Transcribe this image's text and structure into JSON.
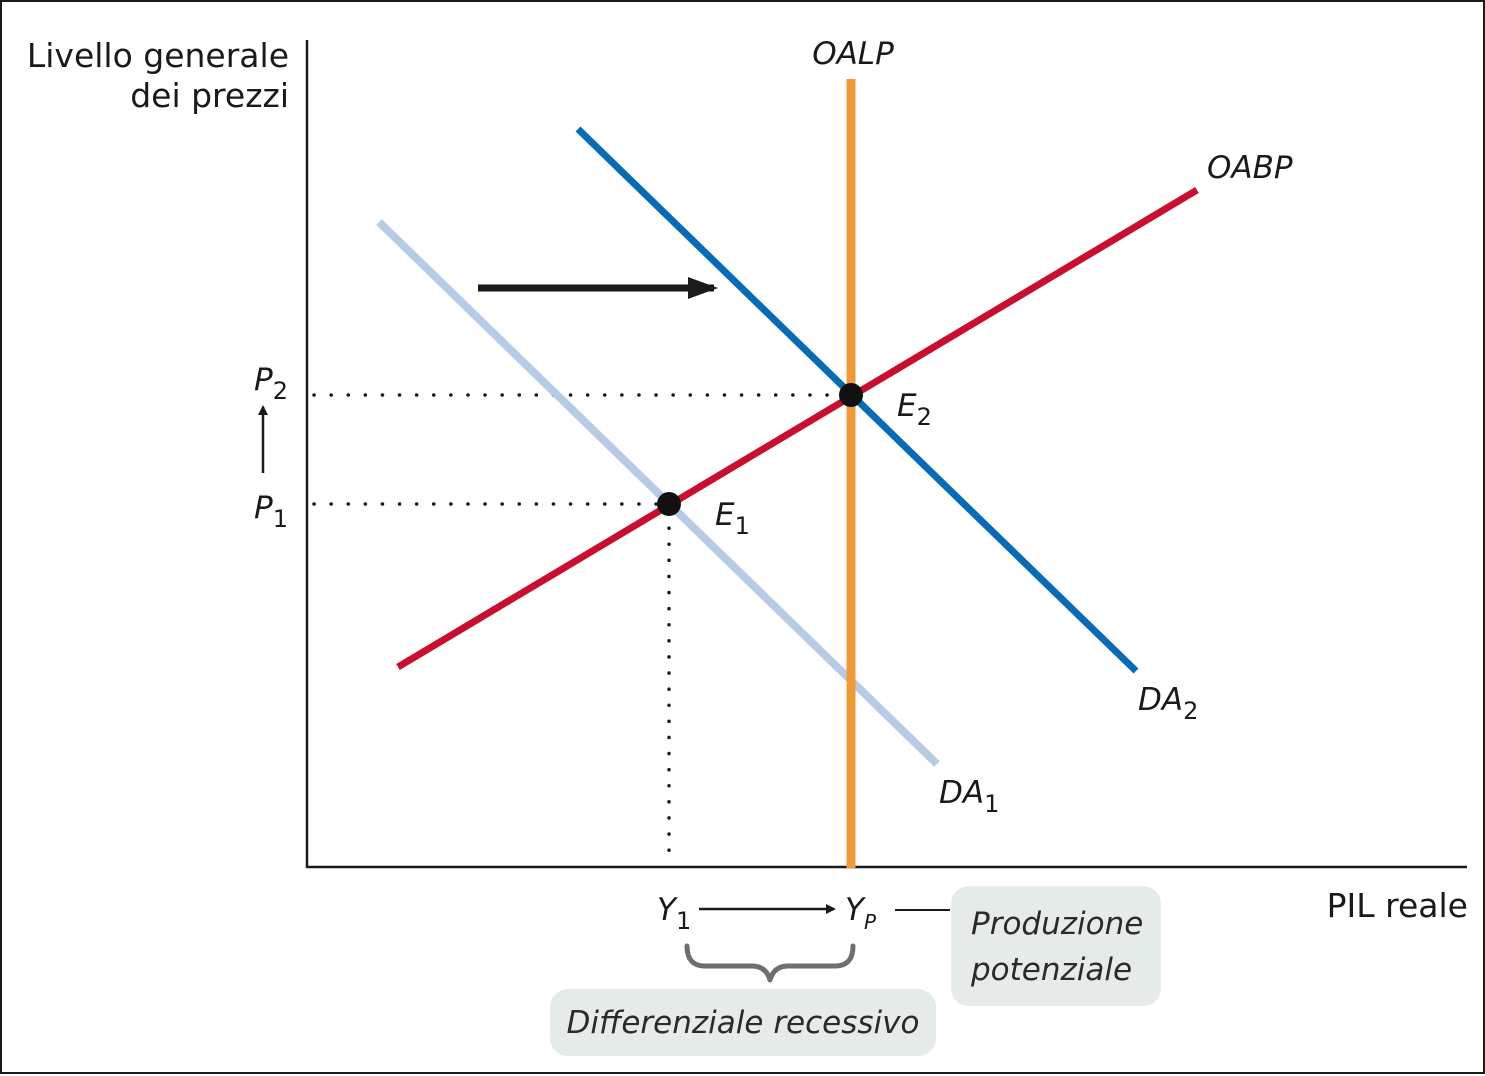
{
  "axes": {
    "y_label_line1": "Livello generale",
    "y_label_line2": "dei prezzi",
    "x_label": "PIL reale"
  },
  "curves": {
    "lras": {
      "label": "OALP",
      "color": "#ef9a3a"
    },
    "sras": {
      "label": "OABP",
      "color": "#c8102e"
    },
    "ad1": {
      "label": "DA",
      "sub": "1",
      "color": "#b8cbe6"
    },
    "ad2": {
      "label": "DA",
      "sub": "2",
      "color": "#0a6bb5"
    }
  },
  "points": {
    "e1": {
      "label": "E",
      "sub": "1"
    },
    "e2": {
      "label": "E",
      "sub": "2"
    }
  },
  "ticks": {
    "p1": {
      "label": "P",
      "sub": "1"
    },
    "p2": {
      "label": "P",
      "sub": "2"
    },
    "y1": {
      "label": "Y",
      "sub": "1"
    },
    "yp": {
      "label": "Y",
      "sub": "P"
    }
  },
  "notes": {
    "potential_line1": "Produzione",
    "potential_line2": "potenziale",
    "gap": "Differenziale recessivo"
  },
  "colors": {
    "axis": "#1a1a1a",
    "note_bg": "#e4ebe8",
    "brace": "#6e6e6e"
  }
}
